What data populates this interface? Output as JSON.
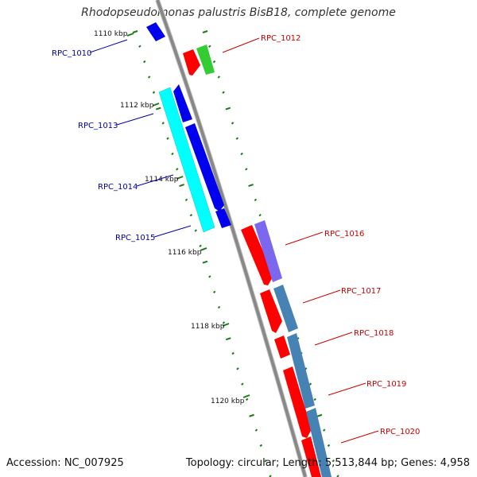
{
  "title": "Rhodopseudomonas palustris BisB18, complete genome",
  "accession": "Accession: NC_007925",
  "summary": "Topology: circular; Length: 5,513,844 bp; Genes: 4,958",
  "scale_labels": [
    "1110 kbp",
    "1112 kbp",
    "1114 kbp",
    "1116 kbp",
    "1118 kbp",
    "1120 kbp"
  ],
  "colors": {
    "backbone": "#888888",
    "tick": "#1a7a1a",
    "forward_label": "#cc0000",
    "reverse_label": "#0000aa",
    "gene_red": "#ff0000",
    "gene_green": "#33cc33",
    "gene_blue": "#0000ee",
    "gene_cyan": "#00ffff",
    "gene_purple": "#7b68ee",
    "gene_steelblue": "#4682b4"
  },
  "genes": [
    {
      "id": "RPC_1010",
      "side": "reverse"
    },
    {
      "id": "RPC_1012",
      "side": "forward"
    },
    {
      "id": "RPC_1013",
      "side": "reverse"
    },
    {
      "id": "RPC_1014",
      "side": "reverse"
    },
    {
      "id": "RPC_1015",
      "side": "reverse"
    },
    {
      "id": "RPC_1016",
      "side": "forward"
    },
    {
      "id": "RPC_1017",
      "side": "forward"
    },
    {
      "id": "RPC_1018",
      "side": "forward"
    },
    {
      "id": "RPC_1019",
      "side": "forward"
    },
    {
      "id": "RPC_1020",
      "side": "forward"
    }
  ]
}
